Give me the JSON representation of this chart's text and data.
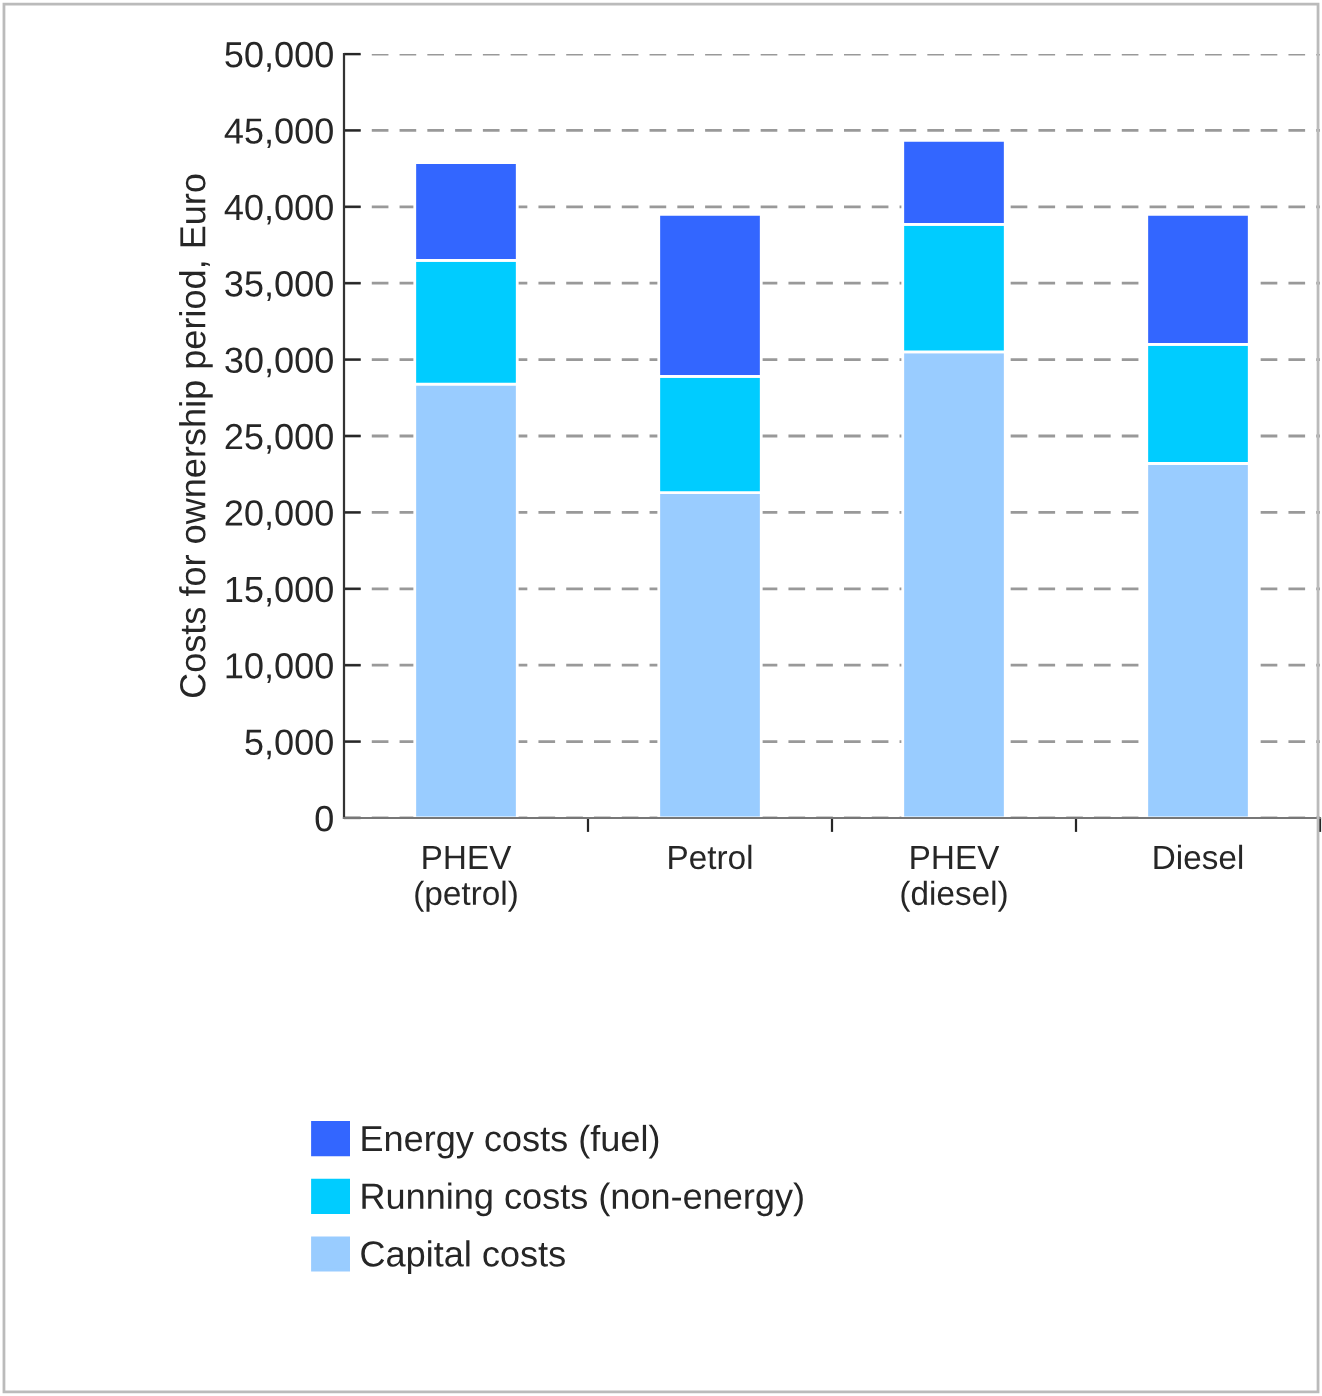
{
  "chart_data": {
    "type": "bar",
    "stacked": true,
    "ylabel": "Costs for ownership period, Euro",
    "categories": [
      "PHEV\n(petrol)",
      "Petrol",
      "PHEV\n(diesel)",
      "Diesel"
    ],
    "series": [
      {
        "name": "Capital costs",
        "color": "#99ccff",
        "values": [
          28400,
          21300,
          30500,
          23200
        ]
      },
      {
        "name": "Running costs (non-energy)",
        "color": "#00ccff",
        "values": [
          8100,
          7600,
          8350,
          7800
        ]
      },
      {
        "name": "Energy costs (fuel)",
        "color": "#3366ff",
        "values": [
          6400,
          10600,
          5500,
          8500
        ]
      }
    ],
    "ylim": [
      0,
      50000
    ],
    "yticks": [
      0,
      {
        "value": 5000,
        "label": "5,000"
      },
      {
        "value": 10000,
        "label": "10,000"
      },
      {
        "value": 15000,
        "label": "15,000"
      },
      {
        "value": 20000,
        "label": "20,000"
      },
      {
        "value": 25000,
        "label": "25,000"
      },
      {
        "value": 30000,
        "label": "30,000"
      },
      {
        "value": 35000,
        "label": "35,000"
      },
      {
        "value": 40000,
        "label": "40,000"
      },
      {
        "value": 45000,
        "label": "45,000"
      },
      {
        "value": 50000,
        "label": "50,000"
      }
    ],
    "grid": "y",
    "legend": "bottom"
  }
}
